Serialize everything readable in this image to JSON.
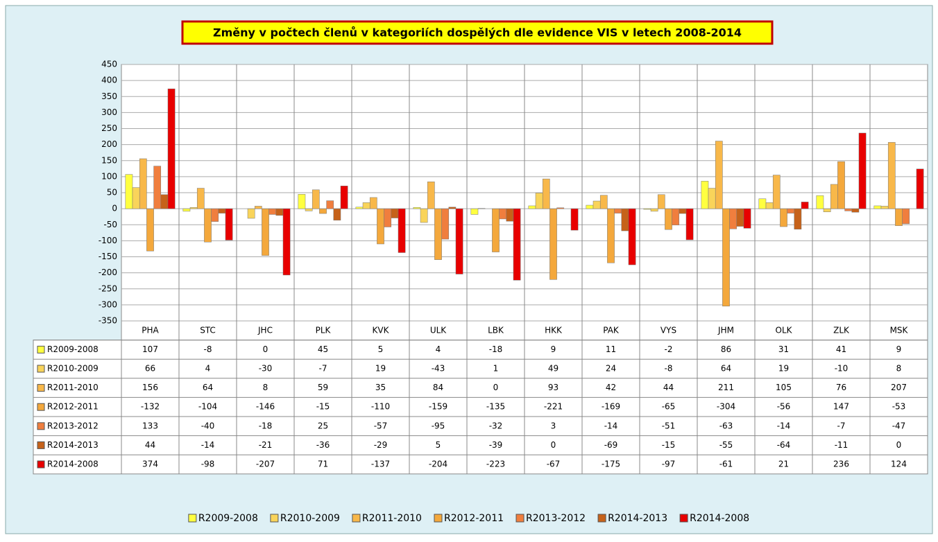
{
  "chart_data": {
    "type": "bar",
    "title": "Změny v počtech členů v kategoriích dospělých dle evidence VIS v letech 2008-2014",
    "categories": [
      "PHA",
      "STC",
      "JHC",
      "PLK",
      "KVK",
      "ULK",
      "LBK",
      "HKK",
      "PAK",
      "VYS",
      "JHM",
      "OLK",
      "ZLK",
      "MSK"
    ],
    "series": [
      {
        "name": "R2009-2008",
        "color": "#ffff40",
        "values": [
          107,
          -8,
          0,
          45,
          5,
          4,
          -18,
          9,
          11,
          -2,
          86,
          31,
          41,
          9
        ]
      },
      {
        "name": "R2010-2009",
        "color": "#f9d45a",
        "values": [
          66,
          4,
          -30,
          -7,
          19,
          -43,
          1,
          49,
          24,
          -8,
          64,
          19,
          -10,
          8
        ]
      },
      {
        "name": "R2011-2010",
        "color": "#f8b84a",
        "values": [
          156,
          64,
          8,
          59,
          35,
          84,
          0,
          93,
          42,
          44,
          211,
          105,
          76,
          207
        ]
      },
      {
        "name": "R2012-2011",
        "color": "#f4a83c",
        "values": [
          -132,
          -104,
          -146,
          -15,
          -110,
          -159,
          -135,
          -221,
          -169,
          -65,
          -304,
          -56,
          147,
          -53
        ]
      },
      {
        "name": "R2013-2012",
        "color": "#f07e3e",
        "values": [
          133,
          -40,
          -18,
          25,
          -57,
          -95,
          -32,
          3,
          -14,
          -51,
          -63,
          -14,
          -7,
          -47
        ]
      },
      {
        "name": "R2014-2013",
        "color": "#c6621a",
        "values": [
          44,
          -14,
          -21,
          -36,
          -29,
          5,
          -39,
          0,
          -69,
          -15,
          -55,
          -64,
          -11,
          0
        ]
      },
      {
        "name": "R2014-2008",
        "color": "#e80000",
        "values": [
          374,
          -98,
          -207,
          71,
          -137,
          -204,
          -223,
          -67,
          -175,
          -97,
          -61,
          21,
          236,
          124
        ]
      }
    ],
    "ylim": [
      -350,
      450
    ],
    "yticks": [
      -350,
      -300,
      -250,
      -200,
      -150,
      -100,
      -50,
      0,
      50,
      100,
      150,
      200,
      250,
      300,
      350,
      400,
      450
    ],
    "grid": true,
    "legend": "bottom"
  }
}
